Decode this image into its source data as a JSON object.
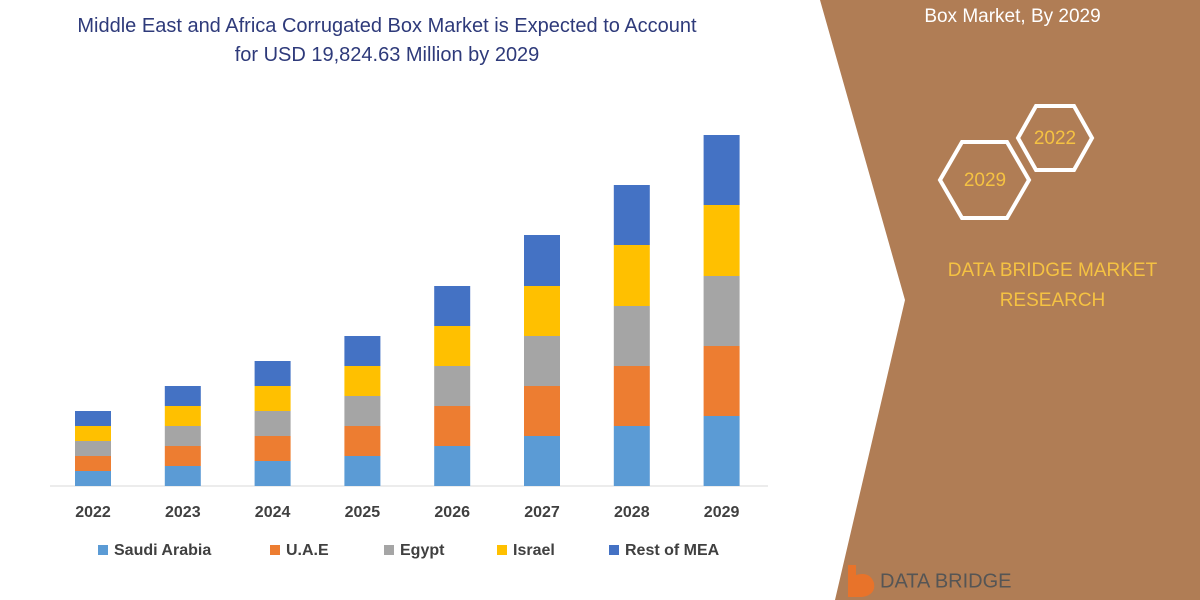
{
  "chart_data": {
    "type": "stacked_bar",
    "title": "Middle East and Africa Corrugated Box Market is Expected to Account for USD 19,824.63 Million by 2029",
    "categories": [
      "2022",
      "2023",
      "2024",
      "2025",
      "2026",
      "2027",
      "2028",
      "2029"
    ],
    "series": [
      {
        "name": "Saudi Arabia",
        "color": "#5b9bd5",
        "values": [
          15,
          20,
          25,
          30,
          40,
          50,
          60,
          70
        ]
      },
      {
        "name": "U.A.E",
        "color": "#ed7d31",
        "values": [
          15,
          20,
          25,
          30,
          40,
          50,
          60,
          70
        ]
      },
      {
        "name": "Egypt",
        "color": "#a5a5a5",
        "values": [
          15,
          20,
          25,
          30,
          40,
          50,
          60,
          70
        ]
      },
      {
        "name": "Israel",
        "color": "#ffc000",
        "values": [
          15,
          20,
          25,
          30,
          40,
          50,
          61,
          71
        ]
      },
      {
        "name": "Rest of MEA",
        "color": "#4472c4",
        "values": [
          15,
          20,
          25,
          30,
          40,
          51,
          60,
          70
        ]
      }
    ],
    "ylim": [
      0,
      360
    ],
    "legend": "bottom"
  },
  "side_panel": {
    "heading": "Box Market, By 2029",
    "hex_labels": [
      "2022",
      "2029"
    ],
    "brand": "DATA BRIDGE MARKET RESEARCH",
    "logo": "DATA BRIDGE"
  }
}
